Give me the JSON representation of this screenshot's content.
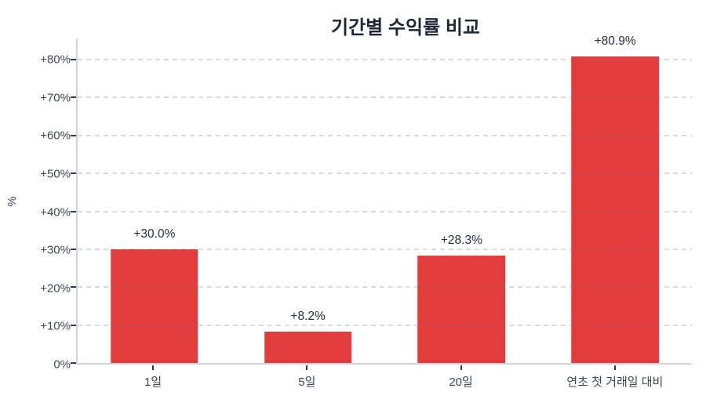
{
  "chart_data": {
    "type": "bar",
    "title": "기간별 수익률 비교",
    "ylabel": "%",
    "xlabel": "",
    "categories": [
      "1일",
      "5일",
      "20일",
      "연초 첫 거래일 대비"
    ],
    "values": [
      30.0,
      8.2,
      28.3,
      80.9
    ],
    "bar_labels": [
      "+30.0%",
      "+8.2%",
      "+28.3%",
      "+80.9%"
    ],
    "yticks": [
      0,
      10,
      20,
      30,
      40,
      50,
      60,
      70,
      80
    ],
    "ytick_labels": [
      "0%",
      "+10%",
      "+20%",
      "+30%",
      "+40%",
      "+50%",
      "+60%",
      "+70%",
      "+80%"
    ],
    "ylim": [
      0,
      85.4
    ],
    "grid": "horizontal-dashed",
    "legend": "none",
    "bar_color": "#e23c3c"
  }
}
